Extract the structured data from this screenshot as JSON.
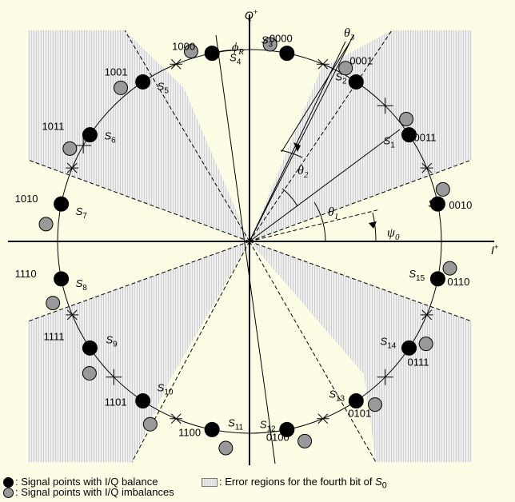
{
  "axes": {
    "x_label": "I",
    "x_sup": "+",
    "y_label": "Q",
    "y_sup": "+"
  },
  "angles": {
    "theta1": "θ",
    "theta1_sub": "1",
    "theta2": "θ",
    "theta2_sub": "2",
    "theta3": "θ",
    "theta3_sub": "3",
    "psi0": "ψ",
    "psi0_sub": "0",
    "phiR": "ϕ",
    "phiR_sub": "R"
  },
  "signal_points": [
    {
      "label": "S",
      "sub": "0",
      "code": "0010"
    },
    {
      "label": "S",
      "sub": "1",
      "code": "0011"
    },
    {
      "label": "S",
      "sub": "2",
      "code": "0001"
    },
    {
      "label": "S",
      "sub": "3",
      "code": "0000"
    },
    {
      "label": "S",
      "sub": "4",
      "code": "1000"
    },
    {
      "label": "S",
      "sub": "5",
      "code": "1001"
    },
    {
      "label": "S",
      "sub": "6",
      "code": "1011"
    },
    {
      "label": "S",
      "sub": "7",
      "code": "1010"
    },
    {
      "label": "S",
      "sub": "8",
      "code": "1110"
    },
    {
      "label": "S",
      "sub": "9",
      "code": "1111"
    },
    {
      "label": "S",
      "sub": "10",
      "code": "1101"
    },
    {
      "label": "S",
      "sub": "11",
      "code": "1100"
    },
    {
      "label": "S",
      "sub": "12",
      "code": "0100"
    },
    {
      "label": "S",
      "sub": "13",
      "code": "0101"
    },
    {
      "label": "S",
      "sub": "14",
      "code": "0111"
    },
    {
      "label": "S",
      "sub": "15",
      "code": "0110"
    }
  ],
  "legend": {
    "balance": ": Signal points with I/Q balance",
    "imbalance": ": Signal points with I/Q imbalances",
    "error_region": ": Error regions for the fourth bit of ",
    "error_region_sym": "S",
    "error_region_sub": "0"
  },
  "colors": {
    "background": "#fdfde6",
    "balance_point": "#000000",
    "imbalance_point": "#999999",
    "error_region": "#dcdcdc"
  }
}
